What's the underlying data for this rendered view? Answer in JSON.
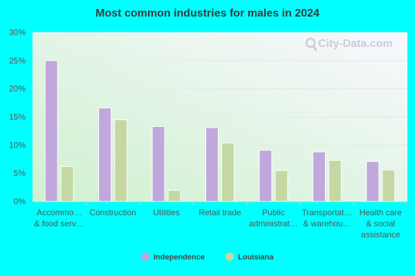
{
  "chart_data": {
    "type": "bar",
    "title": "Most common industries for males in 2024",
    "categories": [
      [
        "Accommo…",
        "& food serv…"
      ],
      [
        "Construction"
      ],
      [
        "Utilities"
      ],
      [
        "Retail trade"
      ],
      [
        "Public",
        "administrat…"
      ],
      [
        "Transportat…",
        "& warehou…"
      ],
      [
        "Health care",
        "& social",
        "assistance"
      ]
    ],
    "series": [
      {
        "name": "Independence",
        "color": "#c0a8dc",
        "values": [
          25.0,
          16.6,
          13.3,
          13.1,
          9.1,
          8.8,
          7.1
        ]
      },
      {
        "name": "Louisiana",
        "color": "#c5d8a4",
        "values": [
          6.2,
          14.5,
          2.0,
          10.4,
          5.5,
          7.3,
          5.6
        ]
      }
    ],
    "ylim": [
      0,
      30
    ],
    "yticks": [
      0,
      5,
      10,
      15,
      20,
      25,
      30
    ],
    "ytick_suffix": "%",
    "xlabel": "",
    "ylabel": "",
    "grid": true,
    "legend_position": "bottom-center"
  },
  "watermark": {
    "text": "City-Data.com",
    "icon": "magnifier-icon"
  },
  "colors": {
    "background": "#00ffff",
    "plot_gradient_top": "#f7f7fd",
    "plot_gradient_bottom": "#d2f2d2"
  }
}
